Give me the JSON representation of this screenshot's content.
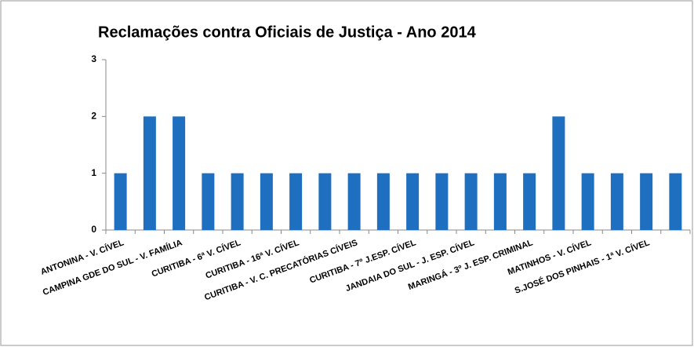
{
  "chart_data": {
    "type": "bar",
    "title": "Reclamações contra Oficiais de Justiça - Ano 2014",
    "categories": [
      "ANTONINA - V. CÍVEL",
      null,
      "CAMPINA GDE DO SUL - V. FAMÍLIA",
      null,
      "CURITIBA - 6ª V. CÍVEL",
      null,
      "CURITIBA - 16ª V. CÍVEL",
      null,
      "CURITIBA - V. C. PRECATÓRIAS CÍVEIS",
      null,
      "CURITIBA - 7º J.ESP. CÍVEL",
      null,
      "JANDAIA DO SUL - J. ESP. CÍVEL",
      null,
      "MARINGÁ - 3º J. ESP. CRIMINAL",
      null,
      "MATINHOS - V. CÍVEL",
      null,
      "S.JOSÉ DOS PINHAIS - 1ª V. CÍVEL",
      null
    ],
    "values": [
      1,
      2,
      2,
      1,
      1,
      1,
      1,
      1,
      1,
      1,
      1,
      1,
      1,
      1,
      1,
      2,
      1,
      1,
      1,
      1
    ],
    "color": "#1f6fc1",
    "ylim": [
      0,
      3
    ],
    "yticks": [
      0,
      1,
      2,
      3
    ],
    "grid": false
  }
}
